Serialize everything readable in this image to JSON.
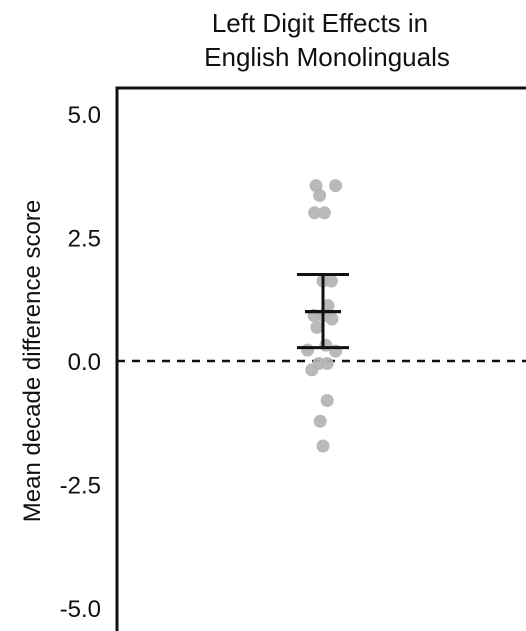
{
  "chart_data": {
    "type": "scatter",
    "title": [
      "Left Digit Effects in",
      "English Monolinguals"
    ],
    "xlabel": "",
    "ylabel": "Mean decade difference score",
    "ylim": [
      -5.2,
      5.4
    ],
    "yticks": [
      5.0,
      2.5,
      0.0,
      -2.5,
      -5.0
    ],
    "ytick_labels": [
      "5.0",
      "2.5",
      "0.0",
      "-2.5",
      "-5.0"
    ],
    "reference_line": 0.0,
    "point_color": "#b3b3b3",
    "points": [
      {
        "x": -0.25,
        "y": 3.55
      },
      {
        "x": 0.45,
        "y": 3.55
      },
      {
        "x": -0.12,
        "y": 3.35
      },
      {
        "x": -0.3,
        "y": 3.0
      },
      {
        "x": 0.05,
        "y": 3.0
      },
      {
        "x": 0.0,
        "y": 1.62
      },
      {
        "x": 0.3,
        "y": 1.62
      },
      {
        "x": 0.18,
        "y": 1.12
      },
      {
        "x": -0.32,
        "y": 0.92
      },
      {
        "x": 0.0,
        "y": 0.92
      },
      {
        "x": 0.32,
        "y": 0.85
      },
      {
        "x": -0.22,
        "y": 0.68
      },
      {
        "x": 0.1,
        "y": 0.32
      },
      {
        "x": -0.55,
        "y": 0.22
      },
      {
        "x": 0.45,
        "y": 0.2
      },
      {
        "x": -0.15,
        "y": -0.05
      },
      {
        "x": 0.15,
        "y": -0.05
      },
      {
        "x": -0.4,
        "y": -0.18
      },
      {
        "x": 0.15,
        "y": -0.8
      },
      {
        "x": -0.1,
        "y": -1.22
      },
      {
        "x": 0.0,
        "y": -1.72
      }
    ],
    "summary": {
      "mean": 1.0,
      "upper": 1.75,
      "lower": 0.27
    }
  }
}
